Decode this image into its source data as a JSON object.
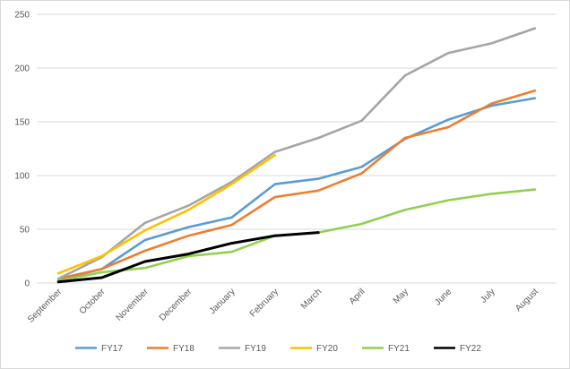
{
  "chart_data": {
    "type": "line",
    "title": "",
    "xlabel": "",
    "ylabel": "",
    "ylim": [
      0,
      250
    ],
    "yticks": [
      0,
      50,
      100,
      150,
      200,
      250
    ],
    "grid": "horizontal",
    "legend_position": "bottom",
    "categories": [
      "September",
      "October",
      "November",
      "December",
      "January",
      "February",
      "March",
      "April",
      "May",
      "June",
      "July",
      "August"
    ],
    "series": [
      {
        "name": "FY17",
        "color": "#5B9BD5",
        "values": [
          3,
          13,
          40,
          52,
          61,
          92,
          97,
          108,
          134,
          152,
          165,
          172
        ]
      },
      {
        "name": "FY18",
        "color": "#ED7D31",
        "values": [
          4,
          13,
          30,
          44,
          54,
          80,
          86,
          102,
          135,
          145,
          167,
          179
        ]
      },
      {
        "name": "FY19",
        "color": "#A5A5A5",
        "values": [
          4,
          24,
          56,
          72,
          94,
          122,
          135,
          151,
          193,
          214,
          223,
          237
        ]
      },
      {
        "name": "FY20",
        "color": "#FFC000",
        "values": [
          9,
          25,
          49,
          68,
          92,
          119,
          null,
          null,
          null,
          null,
          null,
          null
        ]
      },
      {
        "name": "FY21",
        "color": "#92D050",
        "values": [
          2,
          10,
          14,
          25,
          29,
          44,
          47,
          55,
          68,
          77,
          83,
          87
        ]
      },
      {
        "name": "FY22",
        "color": "#000000",
        "values": [
          1,
          5,
          20,
          27,
          37,
          44,
          47,
          null,
          null,
          null,
          null,
          null
        ]
      }
    ]
  }
}
